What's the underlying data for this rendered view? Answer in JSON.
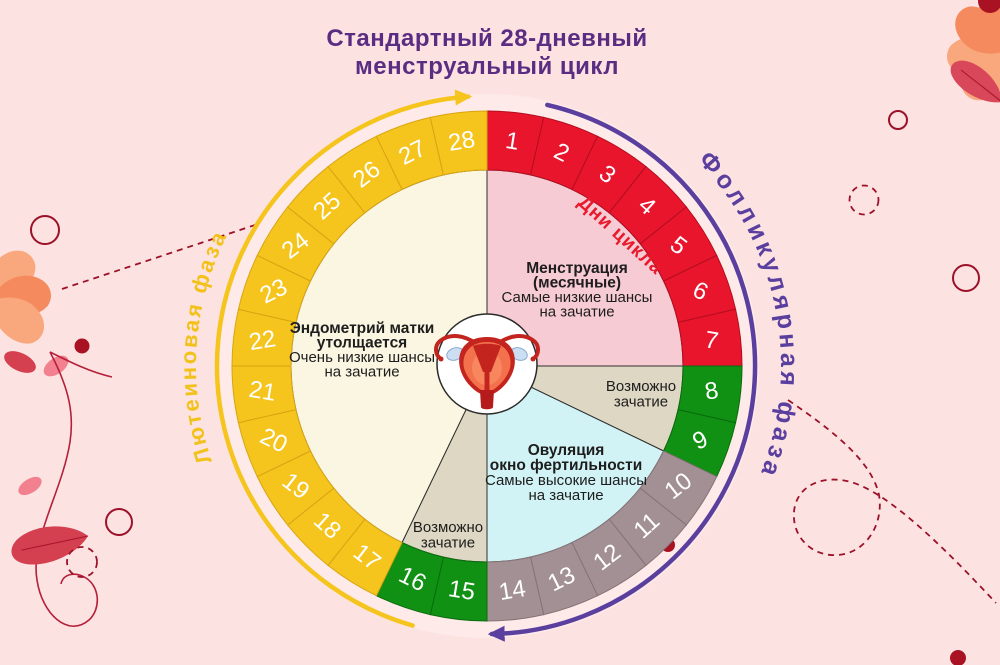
{
  "title": {
    "line1": "Стандартный 28-дневный",
    "line2": "менструальный цикл"
  },
  "wheel": {
    "days_total": 28,
    "day_numbers": [
      1,
      2,
      3,
      4,
      5,
      6,
      7,
      8,
      9,
      10,
      11,
      12,
      13,
      14,
      15,
      16,
      17,
      18,
      19,
      20,
      21,
      22,
      23,
      24,
      25,
      26,
      27,
      28
    ],
    "days_ring_label": "Дни цикла",
    "day_color_ranges": [
      {
        "from": 1,
        "to": 7,
        "color": "#e8152d",
        "border": "#b30e20"
      },
      {
        "from": 8,
        "to": 9,
        "color": "#119114",
        "border": "#0a6b0d"
      },
      {
        "from": 10,
        "to": 14,
        "color": "#a39094",
        "border": "#857377"
      },
      {
        "from": 15,
        "to": 16,
        "color": "#119114",
        "border": "#0a6b0d"
      },
      {
        "from": 17,
        "to": 28,
        "color": "#f5c41d",
        "border": "#d8a511"
      }
    ],
    "sectors": [
      {
        "id": "menstruation",
        "from_day": 1,
        "to_day": 7,
        "fill": "#f7cbd3",
        "bold_lines": 2,
        "lines": [
          "Менструация",
          "(месячные)",
          "Самые низкие шансы",
          "на зачатие"
        ]
      },
      {
        "id": "possible-conception-right",
        "from_day": 8,
        "to_day": 9,
        "fill": "#ddd7c3",
        "bold_lines": 0,
        "lines": [
          "Возможно",
          "зачатие"
        ]
      },
      {
        "id": "ovulation",
        "from_day": 10,
        "to_day": 14,
        "fill": "#d2f3f5",
        "bold_lines": 2,
        "lines": [
          "Овуляция",
          "окно фертильности",
          "Самые высокие шансы",
          "на зачатие"
        ]
      },
      {
        "id": "possible-conception-left",
        "from_day": 15,
        "to_day": 16,
        "fill": "#ddd7c3",
        "bold_lines": 0,
        "lines": [
          "Возможно",
          "зачатие"
        ]
      },
      {
        "id": "luteal-endometrium",
        "from_day": 17,
        "to_day": 28,
        "fill": "#faf6e2",
        "bold_lines": 2,
        "lines": [
          "Эндометрий матки",
          "утолщается",
          "Очень низкие шансы",
          "на зачатие"
        ]
      }
    ],
    "phase_labels": {
      "follicular": "Фолликулярная фаза",
      "luteal": "Лютеиновая фаза"
    }
  },
  "palette": {
    "background": "#fce3e2",
    "title": "#5a2d82",
    "days_label": "#e81a2d",
    "follicular_label": "#5b3f9e",
    "luteal_label": "#f2c21a",
    "arrow_purple": "#5b3f9e",
    "arrow_yellow": "#f5c41d",
    "decoration_red": "#9c1127",
    "day_number_text": "#ffffff"
  }
}
